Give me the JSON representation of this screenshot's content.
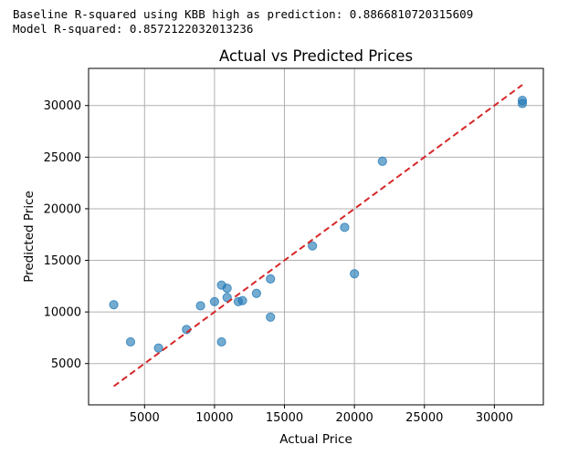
{
  "output": {
    "line1": "Baseline R-squared using KBB high as prediction: 0.8866810720315609",
    "line2": "Model R-squared: 0.8572122032013236"
  },
  "chart_data": {
    "type": "scatter",
    "title": "Actual vs Predicted Prices",
    "xlabel": "Actual Price",
    "ylabel": "Predicted Price",
    "xlim": [
      1000,
      33500
    ],
    "ylim": [
      1000,
      33600
    ],
    "xticks": [
      5000,
      10000,
      15000,
      20000,
      25000,
      30000
    ],
    "yticks": [
      5000,
      10000,
      15000,
      20000,
      25000,
      30000
    ],
    "grid": true,
    "point_color": "#1f77b4",
    "line_color": "#d62728",
    "points": [
      {
        "x": 2800,
        "y": 10700
      },
      {
        "x": 4000,
        "y": 7100
      },
      {
        "x": 6000,
        "y": 6500
      },
      {
        "x": 8000,
        "y": 8300
      },
      {
        "x": 9000,
        "y": 10600
      },
      {
        "x": 10000,
        "y": 11000
      },
      {
        "x": 10500,
        "y": 12600
      },
      {
        "x": 10500,
        "y": 7100
      },
      {
        "x": 10900,
        "y": 12300
      },
      {
        "x": 10900,
        "y": 11400
      },
      {
        "x": 11700,
        "y": 11000
      },
      {
        "x": 12000,
        "y": 11100
      },
      {
        "x": 13000,
        "y": 11800
      },
      {
        "x": 14000,
        "y": 13200
      },
      {
        "x": 14000,
        "y": 9500
      },
      {
        "x": 17000,
        "y": 16400
      },
      {
        "x": 19300,
        "y": 18200
      },
      {
        "x": 20000,
        "y": 13700
      },
      {
        "x": 22000,
        "y": 24600
      },
      {
        "x": 32000,
        "y": 30500
      },
      {
        "x": 32000,
        "y": 30200
      }
    ],
    "reference_line": {
      "x": [
        2800,
        32000
      ],
      "y": [
        2800,
        32000
      ]
    }
  }
}
